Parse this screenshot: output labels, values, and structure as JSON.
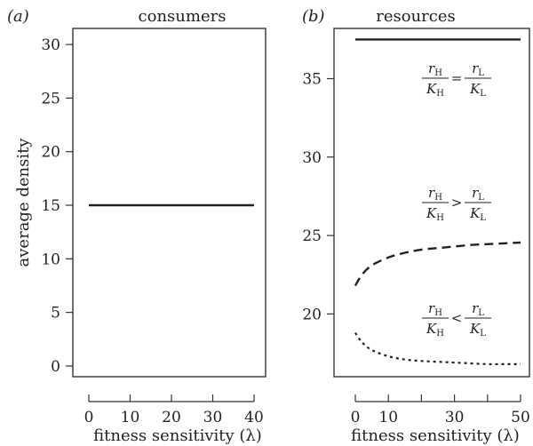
{
  "chart_data": [
    {
      "type": "line",
      "panel_label": "(a)",
      "title": "consumers",
      "xlabel": "fitness sensitivity (λ)",
      "ylabel": "average density",
      "xlim": [
        0,
        40
      ],
      "ylim": [
        -1,
        31.5
      ],
      "x_ticks": [
        0,
        10,
        20,
        30,
        40
      ],
      "y_ticks": [
        0,
        5,
        10,
        15,
        20,
        25,
        30
      ],
      "series": [
        {
          "style": "solid",
          "color": "#222222",
          "x": [
            0,
            40
          ],
          "y": [
            15,
            15
          ]
        }
      ]
    },
    {
      "type": "line",
      "panel_label": "(b)",
      "title": "resources",
      "xlabel": "fitness sensitivity (λ)",
      "ylabel": "",
      "xlim": [
        0,
        50
      ],
      "ylim": [
        16,
        38.2
      ],
      "x_ticks": [
        0,
        10,
        20,
        30,
        40,
        50
      ],
      "x_tick_labels": [
        "0",
        "10",
        "",
        "30",
        "",
        "50"
      ],
      "y_ticks": [
        20,
        25,
        30,
        35
      ],
      "series": [
        {
          "style": "solid",
          "color": "#222222",
          "x": [
            0,
            50
          ],
          "y": [
            37.5,
            37.5
          ],
          "annotation": {
            "num_left": "r",
            "sub_num_left": "H",
            "den_left": "K",
            "sub_den_left": "H",
            "relation": "=",
            "num_right": "r",
            "sub_num_right": "L",
            "den_right": "K",
            "sub_den_right": "L"
          }
        },
        {
          "style": "dashed",
          "color": "#222222",
          "x": [
            0,
            2,
            5,
            10,
            15,
            20,
            25,
            30,
            35,
            40,
            45,
            50
          ],
          "y": [
            21.8,
            22.5,
            23.1,
            23.6,
            23.9,
            24.1,
            24.2,
            24.3,
            24.4,
            24.45,
            24.5,
            24.55
          ],
          "annotation": {
            "num_left": "r",
            "sub_num_left": "H",
            "den_left": "K",
            "sub_den_left": "H",
            "relation": ">",
            "num_right": "r",
            "sub_num_right": "L",
            "den_right": "K",
            "sub_den_right": "L"
          }
        },
        {
          "style": "dotted",
          "color": "#222222",
          "x": [
            0,
            2,
            5,
            10,
            15,
            20,
            25,
            30,
            35,
            40,
            45,
            50
          ],
          "y": [
            18.8,
            18.2,
            17.7,
            17.3,
            17.1,
            17.0,
            16.95,
            16.9,
            16.85,
            16.8,
            16.8,
            16.8
          ],
          "annotation": {
            "num_left": "r",
            "sub_num_left": "H",
            "den_left": "K",
            "sub_den_left": "H",
            "relation": "<",
            "num_right": "r",
            "sub_num_right": "L",
            "den_right": "K",
            "sub_den_right": "L"
          }
        }
      ]
    }
  ]
}
